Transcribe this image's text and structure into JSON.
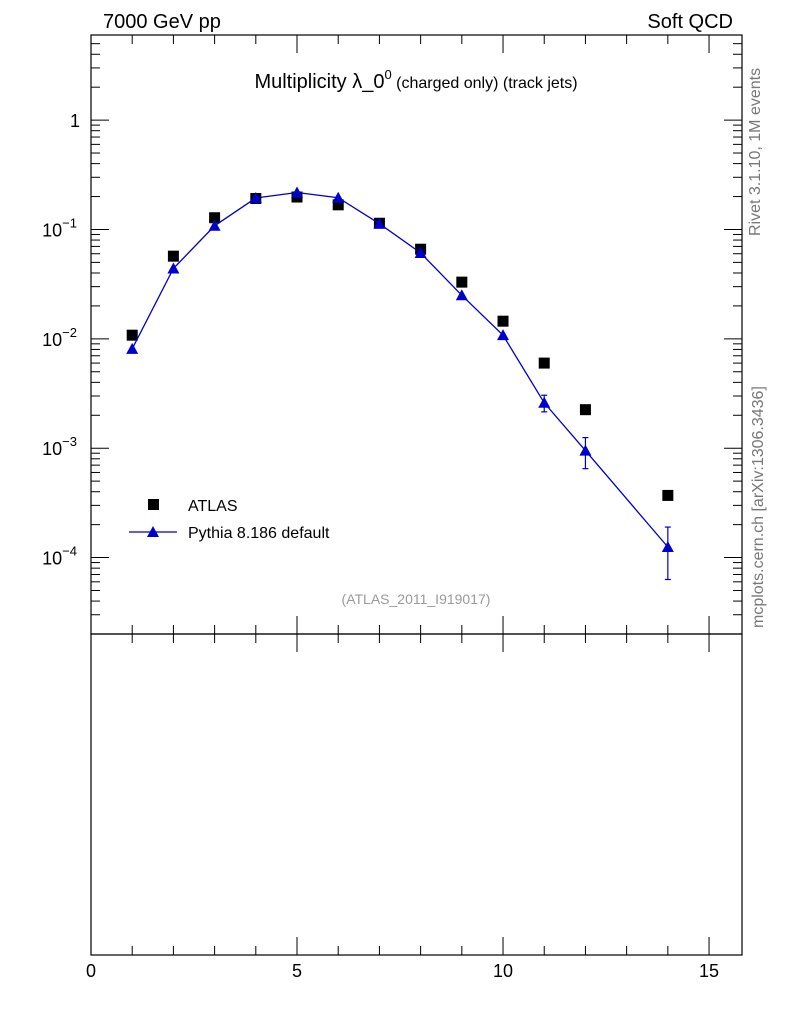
{
  "header": {
    "left": "7000 GeV pp",
    "right": "Soft QCD"
  },
  "side_labels": {
    "top": "Rivet 3.1.10,  1M events",
    "bottom": "mcplots.cern.ch [arXiv:1306.3436]"
  },
  "analysis_tag": "(ATLAS_2011_I919017)",
  "chart_data": {
    "type": "scatter",
    "title": {
      "main": "Multiplicity λ_0",
      "sup": "0",
      "sub": " (charged only) (track jets)"
    },
    "yscale": "log",
    "ylim": [
      2e-05,
      6
    ],
    "xlim": [
      0,
      15.8
    ],
    "x_ticks": [
      "0",
      "5",
      "10",
      "15"
    ],
    "y_ticks": [
      {
        "value": 1,
        "base": "1",
        "exp": ""
      },
      {
        "value": 0.1,
        "base": "10",
        "exp": "−1"
      },
      {
        "value": 0.01,
        "base": "10",
        "exp": "−2"
      },
      {
        "value": 0.001,
        "base": "10",
        "exp": "−3"
      },
      {
        "value": 0.0001,
        "base": "10",
        "exp": "−4"
      }
    ],
    "legend_position": "bottom-left",
    "series": [
      {
        "name": "ATLAS",
        "marker": "square",
        "color": "#000000",
        "line": false,
        "x": [
          1,
          2,
          3,
          4,
          5,
          6,
          7,
          8,
          9,
          10,
          11,
          12,
          14
        ],
        "y": [
          0.0108,
          0.057,
          0.128,
          0.192,
          0.198,
          0.168,
          0.114,
          0.066,
          0.033,
          0.0145,
          0.006,
          0.00225,
          0.00037
        ]
      },
      {
        "name": "Pythia 8.186 default",
        "marker": "triangle",
        "color": "#0000cc",
        "line": true,
        "x": [
          1,
          2,
          3,
          4,
          5,
          6,
          7,
          8,
          9,
          10,
          11,
          12,
          14
        ],
        "y": [
          0.0081,
          0.044,
          0.108,
          0.194,
          0.218,
          0.195,
          0.113,
          0.061,
          0.025,
          0.0108,
          0.0026,
          0.00095,
          0.000125
        ],
        "err_low": [
          null,
          null,
          null,
          null,
          null,
          null,
          null,
          null,
          null,
          null,
          0.00215,
          0.00065,
          6.3e-05
        ],
        "err_high": [
          null,
          null,
          null,
          null,
          null,
          null,
          null,
          null,
          null,
          null,
          0.00305,
          0.00125,
          0.00019
        ]
      }
    ]
  }
}
